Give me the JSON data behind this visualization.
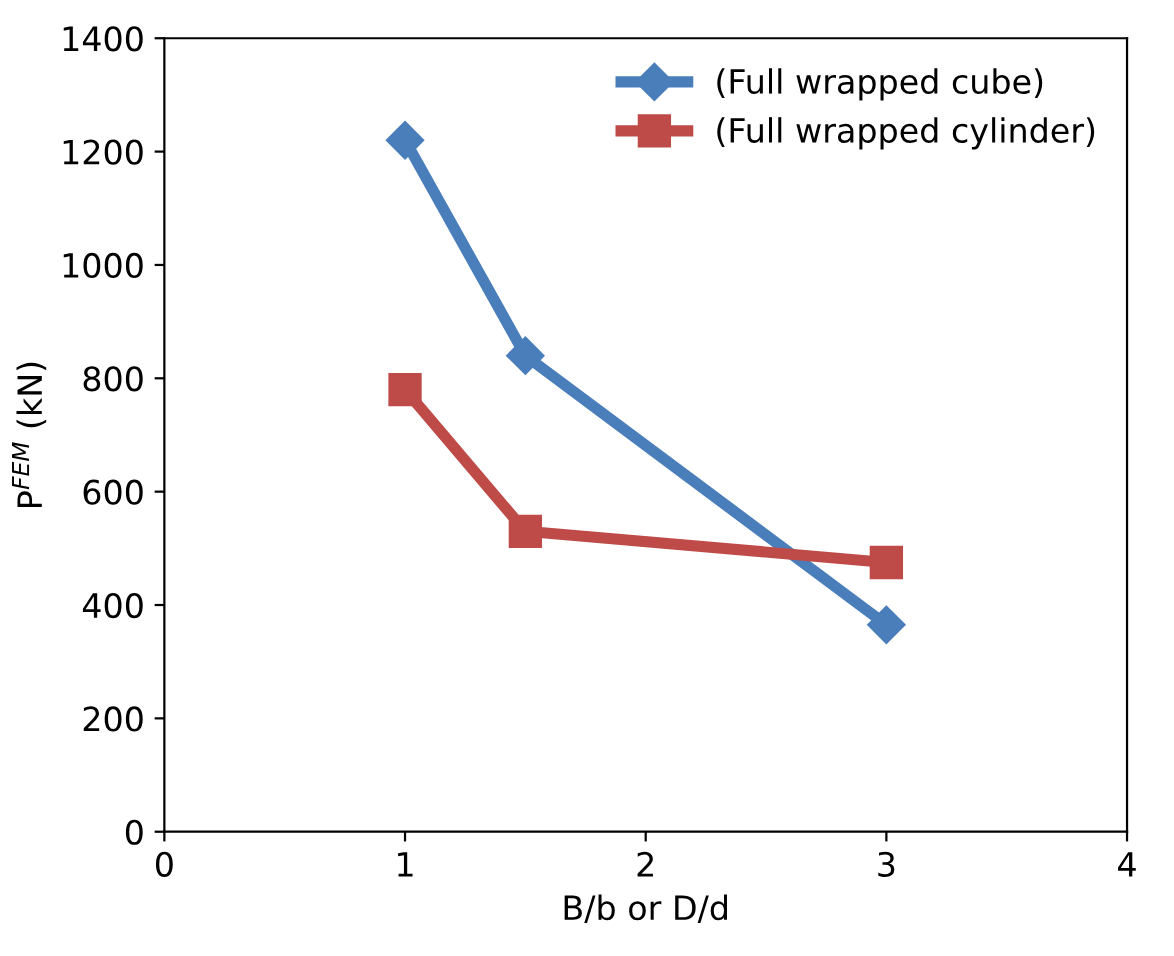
{
  "chart_data": {
    "type": "line",
    "xlabel": "B/b or D/d",
    "ylabel": "P$^{FEM}$ (kN)",
    "series": [
      {
        "name": "(Full wrapped cube)",
        "color": "#4a7ebb",
        "x": [
          1,
          1.5,
          3
        ],
        "values": [
          1220,
          840,
          365
        ],
        "marker": "diamond"
      },
      {
        "name": "(Full wrapped cylinder)",
        "color": "#be4b48",
        "x": [
          1,
          1.5,
          3
        ],
        "values": [
          780,
          530,
          475
        ],
        "marker": "square"
      }
    ],
    "xlim": [
      0,
      4
    ],
    "xticks": [
      0,
      1,
      2,
      3,
      4
    ],
    "ylim": [
      0,
      1400
    ],
    "yticks": [
      0,
      200,
      400,
      600,
      800,
      1000,
      1200,
      1400
    ],
    "legend": "top right",
    "grid": false,
    "line_style": "solid"
  }
}
